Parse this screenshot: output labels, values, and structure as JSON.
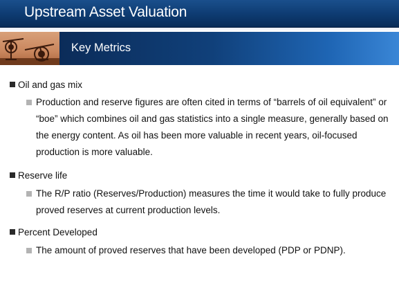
{
  "header": {
    "title": "Upstream Asset Valuation",
    "subtitle": "Key Metrics"
  },
  "colors": {
    "title_bar": "#0d3a70",
    "subtitle_bar_dark": "#0b2c59",
    "subtitle_bar_light": "#3a86d6",
    "bullet_primary": "#2a2a2a",
    "bullet_secondary": "#b3b3b3"
  },
  "photo": {
    "icon": "pumpjack-photo-icon"
  },
  "bullets": [
    {
      "heading": "Oil and gas mix",
      "sub": [
        "Production and reserve figures are often cited in terms of “barrels of oil equivalent” or “boe” which combines oil and gas statistics into a single measure, generally based on the energy content. As oil has been more valuable in recent years, oil-focused production is more valuable."
      ]
    },
    {
      "heading": "Reserve life",
      "sub": [
        "The R/P ratio (Reserves/Production) measures the time it would take to fully produce proved reserves at current production levels."
      ]
    },
    {
      "heading": "Percent Developed",
      "sub": [
        "The amount of proved reserves that have been developed (PDP or PDNP)."
      ]
    }
  ]
}
